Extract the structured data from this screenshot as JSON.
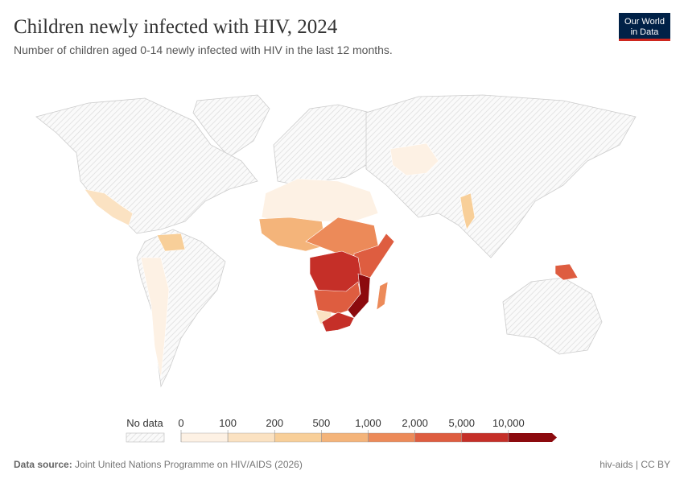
{
  "header": {
    "title": "Children newly infected with HIV, 2024",
    "subtitle": "Number of children aged 0-14 newly infected with HIV in the last 12 months.",
    "logo": [
      "Our World",
      "in Data"
    ]
  },
  "legend": {
    "no_data": "No data",
    "ticks": [
      "0",
      "100",
      "200",
      "500",
      "1,000",
      "2,000",
      "5,000",
      "10,000"
    ],
    "colors": [
      "#fdf1e4",
      "#fbe2c2",
      "#f8cf99",
      "#f4b47a",
      "#ec8a59",
      "#de5d40",
      "#c52f28",
      "#8c0a0e"
    ]
  },
  "footer": {
    "source_label": "Data source:",
    "source": "Joint United Nations Programme on HIV/AIDS (2026)",
    "right": "hiv-aids | CC BY"
  }
}
